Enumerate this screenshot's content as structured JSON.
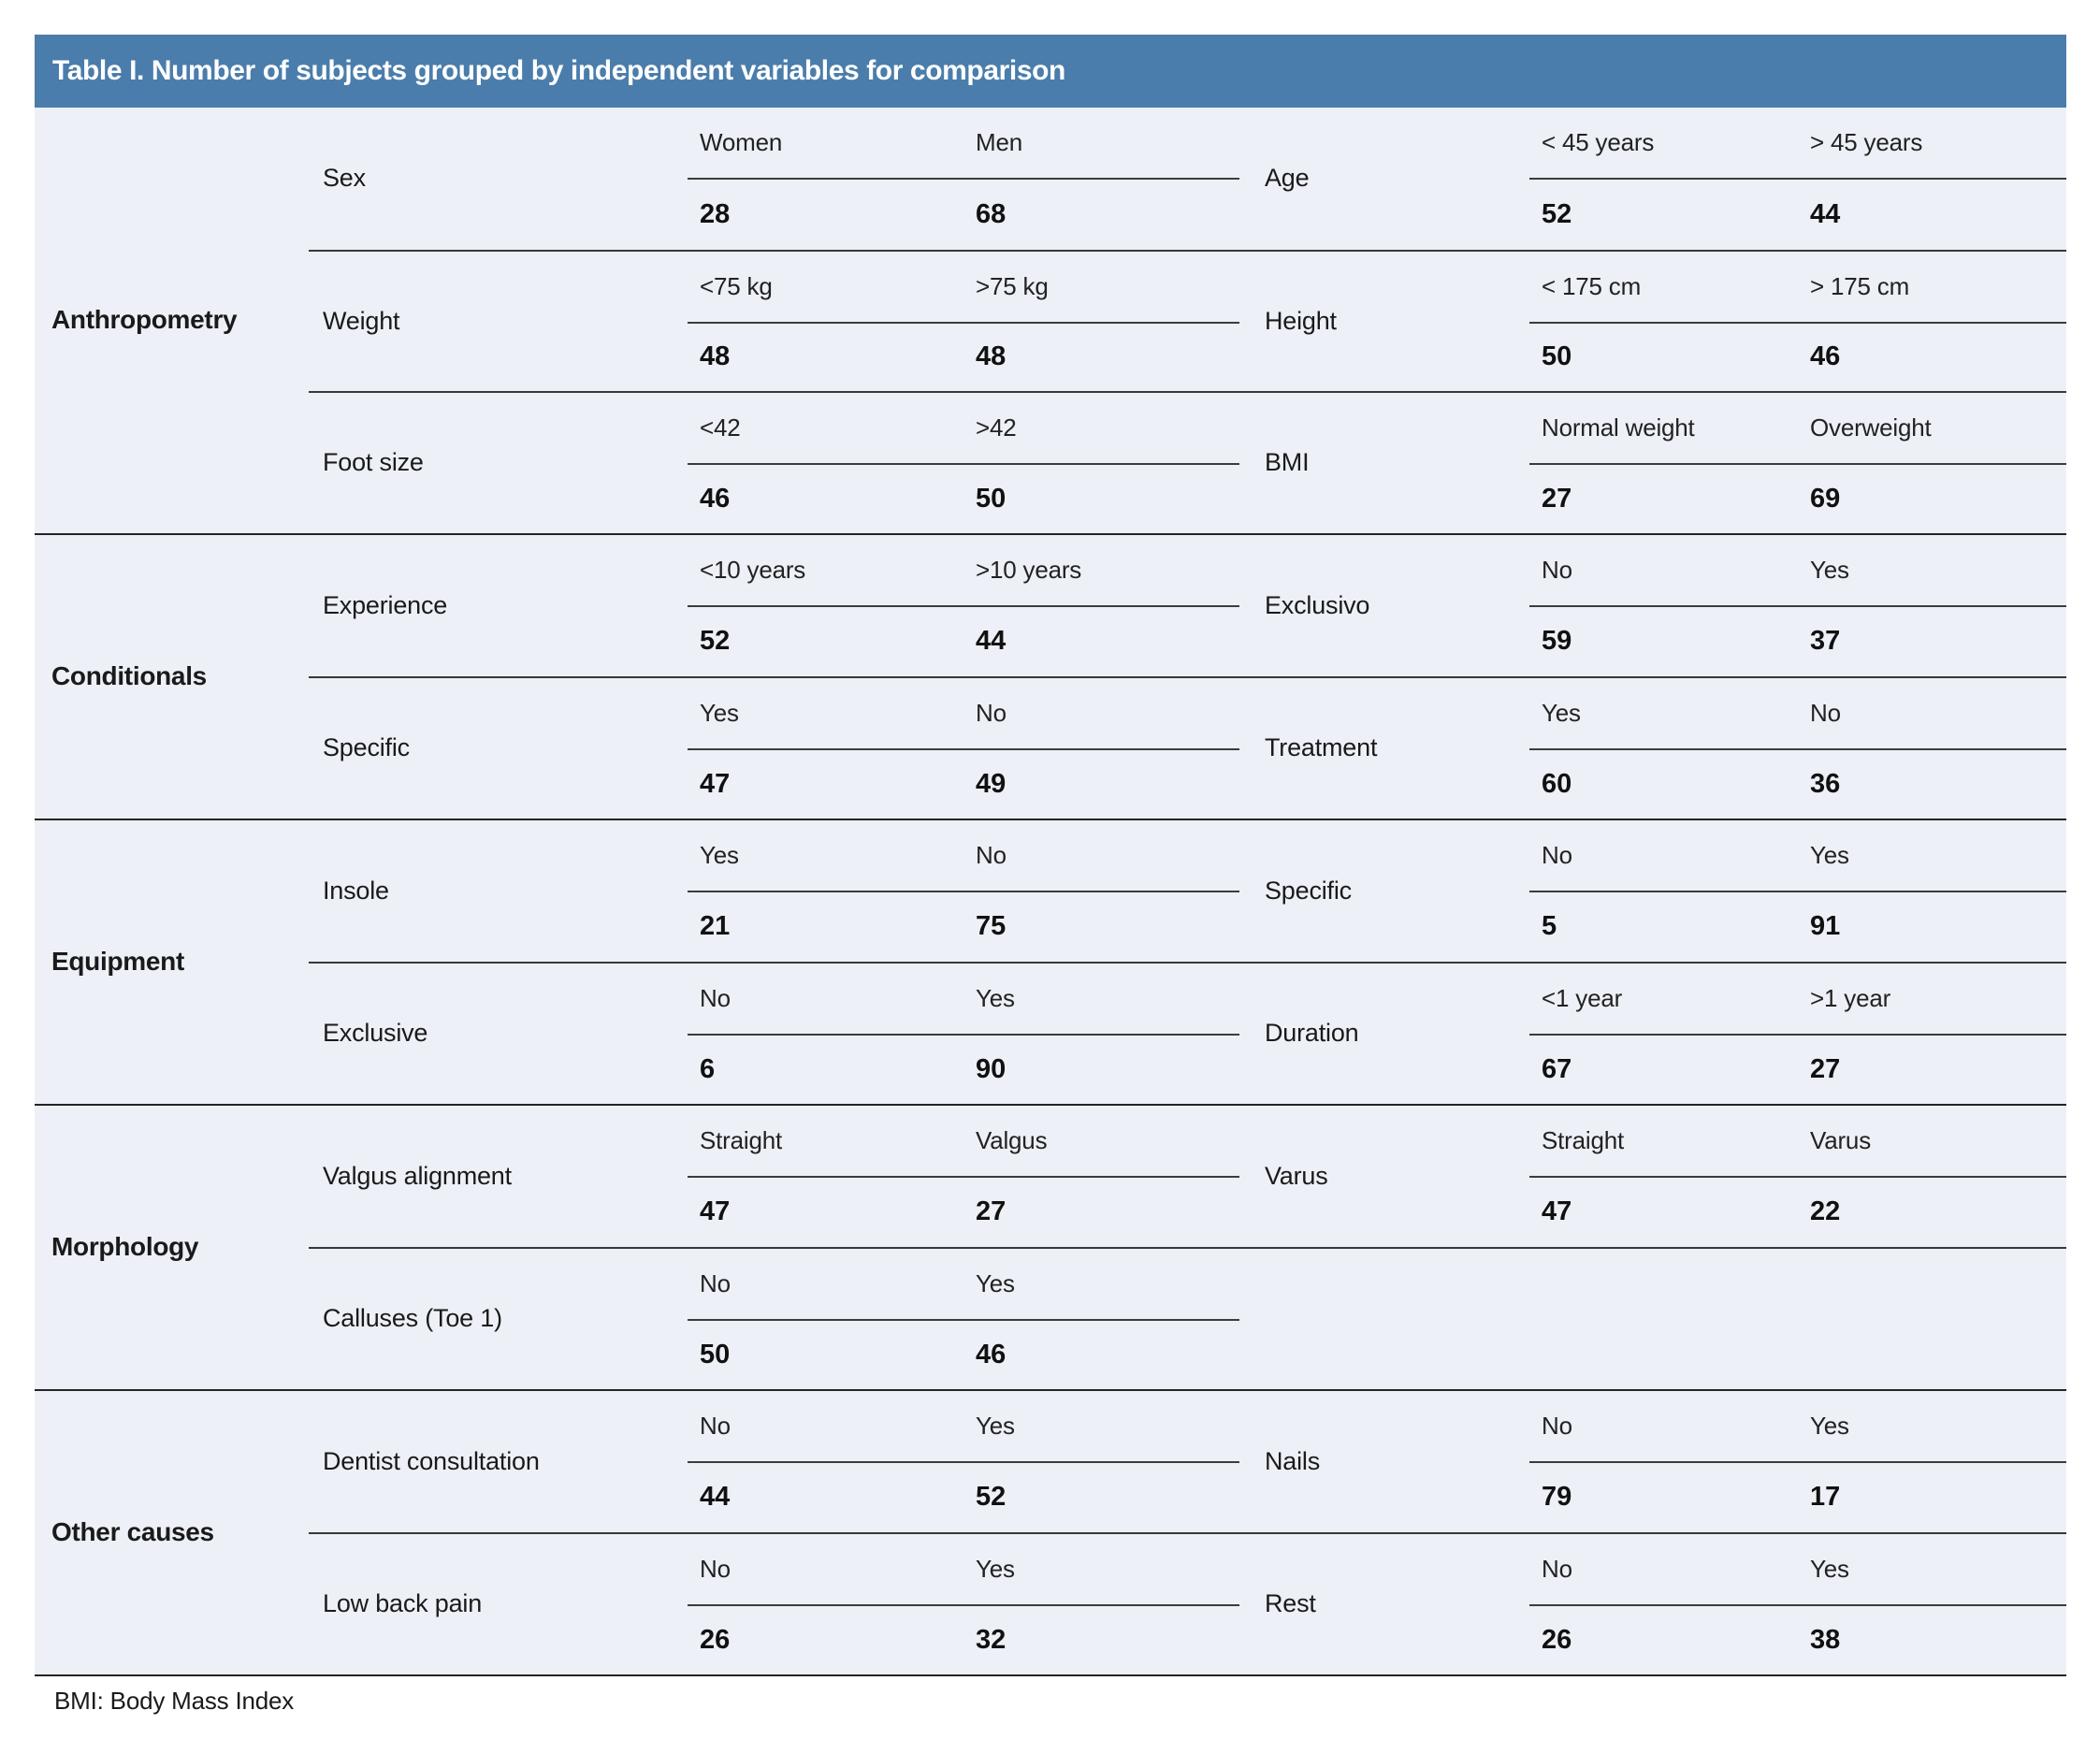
{
  "title": "Table I. Number of subjects grouped by independent variables for comparison",
  "footnote": "BMI: Body Mass Index",
  "colors": {
    "header_bg": "#4a7dab",
    "header_text": "#ffffff",
    "body_bg": "#edf0f7",
    "line_dark": "#242424",
    "line_mid": "#383838"
  },
  "groups": [
    {
      "label": "Anthropometry",
      "rows": [
        {
          "left": {
            "variable": "Sex",
            "cols": [
              {
                "label": "Women",
                "value": "28"
              },
              {
                "label": "Men",
                "value": "68"
              }
            ]
          },
          "right": {
            "variable": "Age",
            "cols": [
              {
                "label": "< 45 years",
                "value": "52"
              },
              {
                "label": "> 45 years",
                "value": "44"
              }
            ]
          }
        },
        {
          "left": {
            "variable": "Weight",
            "cols": [
              {
                "label": "<75 kg",
                "value": "48"
              },
              {
                "label": ">75 kg",
                "value": "48"
              }
            ]
          },
          "right": {
            "variable": "Height",
            "cols": [
              {
                "label": "< 175 cm",
                "value": "50"
              },
              {
                "label": "> 175 cm",
                "value": "46"
              }
            ]
          }
        },
        {
          "left": {
            "variable": "Foot size",
            "cols": [
              {
                "label": "<42",
                "value": "46"
              },
              {
                "label": ">42",
                "value": "50"
              }
            ]
          },
          "right": {
            "variable": "BMI",
            "cols": [
              {
                "label": "Normal weight",
                "value": "27"
              },
              {
                "label": "Overweight",
                "value": "69"
              }
            ]
          }
        }
      ]
    },
    {
      "label": "Conditionals",
      "rows": [
        {
          "left": {
            "variable": "Experience",
            "cols": [
              {
                "label": "<10 years",
                "value": "52"
              },
              {
                "label": ">10 years",
                "value": "44"
              }
            ]
          },
          "right": {
            "variable": "Exclusivo",
            "cols": [
              {
                "label": "No",
                "value": "59"
              },
              {
                "label": "Yes",
                "value": "37"
              }
            ]
          }
        },
        {
          "left": {
            "variable": "Specific",
            "cols": [
              {
                "label": "Yes",
                "value": "47"
              },
              {
                "label": "No",
                "value": "49"
              }
            ]
          },
          "right": {
            "variable": "Treatment",
            "cols": [
              {
                "label": "Yes",
                "value": "60"
              },
              {
                "label": "No",
                "value": "36"
              }
            ]
          }
        }
      ]
    },
    {
      "label": "Equipment",
      "rows": [
        {
          "left": {
            "variable": "Insole",
            "cols": [
              {
                "label": "Yes",
                "value": "21"
              },
              {
                "label": "No",
                "value": "75"
              }
            ]
          },
          "right": {
            "variable": "Specific",
            "cols": [
              {
                "label": "No",
                "value": "5"
              },
              {
                "label": "Yes",
                "value": "91"
              }
            ]
          }
        },
        {
          "left": {
            "variable": "Exclusive",
            "cols": [
              {
                "label": "No",
                "value": "6"
              },
              {
                "label": "Yes",
                "value": "90"
              }
            ]
          },
          "right": {
            "variable": "Duration",
            "cols": [
              {
                "label": "<1 year",
                "value": "67"
              },
              {
                "label": ">1 year",
                "value": "27"
              }
            ]
          }
        }
      ]
    },
    {
      "label": "Morphology",
      "rows": [
        {
          "left": {
            "variable": "Valgus alignment",
            "cols": [
              {
                "label": "Straight",
                "value": "47"
              },
              {
                "label": "Valgus",
                "value": "27"
              }
            ]
          },
          "right": {
            "variable": "Varus",
            "cols": [
              {
                "label": "Straight",
                "value": "47"
              },
              {
                "label": "Varus",
                "value": "22"
              }
            ]
          }
        },
        {
          "left": {
            "variable": "Calluses (Toe 1)",
            "cols": [
              {
                "label": "No",
                "value": "50"
              },
              {
                "label": "Yes",
                "value": "46"
              }
            ]
          },
          "right": null
        }
      ]
    },
    {
      "label": "Other causes",
      "rows": [
        {
          "left": {
            "variable": "Dentist consultation",
            "cols": [
              {
                "label": "No",
                "value": "44"
              },
              {
                "label": "Yes",
                "value": "52"
              }
            ]
          },
          "right": {
            "variable": "Nails",
            "cols": [
              {
                "label": "No",
                "value": "79"
              },
              {
                "label": "Yes",
                "value": "17"
              }
            ]
          }
        },
        {
          "left": {
            "variable": "Low back pain",
            "cols": [
              {
                "label": "No",
                "value": "26"
              },
              {
                "label": "Yes",
                "value": "32"
              }
            ]
          },
          "right": {
            "variable": "Rest",
            "cols": [
              {
                "label": "No",
                "value": "26"
              },
              {
                "label": "Yes",
                "value": "38"
              }
            ]
          }
        }
      ]
    }
  ]
}
